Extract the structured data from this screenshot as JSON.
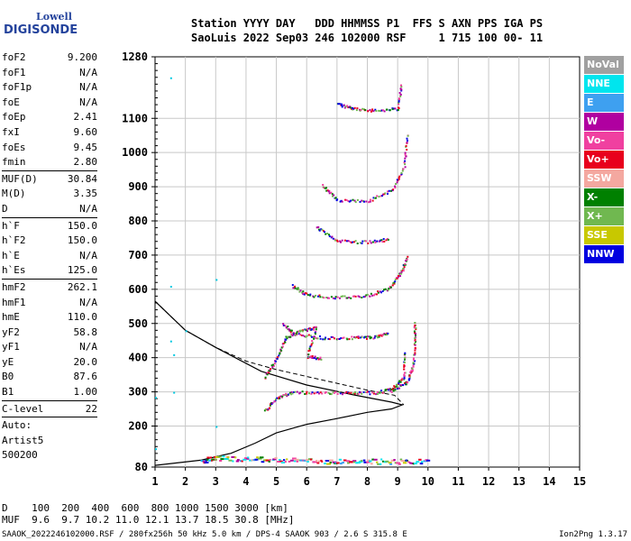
{
  "logo": {
    "line1": "Lowell",
    "line2": "DIGISONDE"
  },
  "header": {
    "line1": "Station YYYY DAY   DDD HHMMSS P1  FFS S AXN PPS IGA PS",
    "line2": "SaoLuis 2022 Sep03 246 102000 RSF     1 715 100 00- 11"
  },
  "params": {
    "group1": [
      {
        "k": "foF2",
        "v": "9.200"
      },
      {
        "k": "foF1",
        "v": "N/A"
      },
      {
        "k": "foF1p",
        "v": "N/A"
      },
      {
        "k": "foE",
        "v": "N/A"
      },
      {
        "k": "foEp",
        "v": "2.41"
      },
      {
        "k": "fxI",
        "v": "9.60"
      },
      {
        "k": "foEs",
        "v": "9.45"
      },
      {
        "k": "fmin",
        "v": "2.80"
      }
    ],
    "group2": [
      {
        "k": "MUF(D)",
        "v": "30.84"
      },
      {
        "k": "M(D)",
        "v": "3.35"
      },
      {
        "k": "D",
        "v": "N/A"
      }
    ],
    "group3": [
      {
        "k": "h`F",
        "v": "150.0"
      },
      {
        "k": "h`F2",
        "v": "150.0"
      },
      {
        "k": "h`E",
        "v": "N/A"
      },
      {
        "k": "h`Es",
        "v": "125.0"
      }
    ],
    "group4": [
      {
        "k": "hmF2",
        "v": "262.1"
      },
      {
        "k": "hmF1",
        "v": "N/A"
      },
      {
        "k": "hmE",
        "v": "110.0"
      },
      {
        "k": "yF2",
        "v": "58.8"
      },
      {
        "k": "yF1",
        "v": "N/A"
      },
      {
        "k": "yE",
        "v": "20.0"
      },
      {
        "k": "B0",
        "v": "87.6"
      },
      {
        "k": "B1",
        "v": "1.00"
      }
    ],
    "group5": [
      {
        "k": "C-level",
        "v": "22"
      }
    ],
    "auto": [
      "Auto:",
      "Artist5",
      "500200"
    ]
  },
  "legend": [
    {
      "label": "NoVal",
      "color": "#a0a0a0"
    },
    {
      "label": "NNE",
      "color": "#00e5ee"
    },
    {
      "label": "E",
      "color": "#3ea0f0"
    },
    {
      "label": "W",
      "color": "#b000a0"
    },
    {
      "label": "Vo-",
      "color": "#f040a0"
    },
    {
      "label": "Vo+",
      "color": "#e8001c"
    },
    {
      "label": "SSW",
      "color": "#f4a8a0"
    },
    {
      "label": "X-",
      "color": "#008000"
    },
    {
      "label": "X+",
      "color": "#70b850"
    },
    {
      "label": "SSE",
      "color": "#c8c800"
    },
    {
      "label": "NNW",
      "color": "#0000e0"
    }
  ],
  "footer": {
    "line1": "D    100  200  400  600  800 1000 1500 3000 [km]",
    "line2": "MUF  9.6  9.7 10.2 11.0 12.1 13.7 18.5 30.8 [MHz]",
    "bottom": "SAAOK_2022246102000.RSF / 280fx256h 50 kHz 5.0 km / DPS-4 SAAOK 903 / 2.6 S 315.8 E",
    "version": "Ion2Png 1.3.17"
  },
  "chart_data": {
    "type": "scatter",
    "title": "",
    "xlabel": "",
    "ylabel": "",
    "xlim": [
      1,
      15
    ],
    "ylim": [
      80,
      1280
    ],
    "x_ticks": [
      1,
      2,
      3,
      4,
      5,
      6,
      7,
      8,
      9,
      10,
      11,
      12,
      13,
      14,
      15
    ],
    "y_ticks": [
      80,
      200,
      300,
      400,
      500,
      600,
      700,
      800,
      900,
      1000,
      1100,
      1280
    ],
    "grid": true,
    "profile_solid": [
      [
        1.0,
        85
      ],
      [
        2.5,
        100
      ],
      [
        3.5,
        120
      ],
      [
        4.3,
        150
      ],
      [
        5.0,
        180
      ],
      [
        6.0,
        205
      ],
      [
        7.0,
        222
      ],
      [
        8.0,
        240
      ],
      [
        8.8,
        250
      ],
      [
        9.15,
        262
      ],
      [
        8.8,
        270
      ],
      [
        7.5,
        292
      ],
      [
        6.0,
        320
      ],
      [
        4.5,
        360
      ],
      [
        3.0,
        430
      ],
      [
        2.0,
        480
      ],
      [
        1.0,
        565
      ]
    ],
    "trace_series": [
      {
        "name": "Es",
        "points": [
          [
            2.5,
            100
          ],
          [
            3.0,
            108
          ],
          [
            4.0,
            105
          ],
          [
            5.0,
            103
          ],
          [
            6.0,
            100
          ],
          [
            7.0,
            98
          ],
          [
            8.0,
            98
          ],
          [
            9.0,
            98
          ],
          [
            10.0,
            98
          ]
        ]
      },
      {
        "name": "F2-1",
        "points": [
          [
            4.6,
            245
          ],
          [
            5.0,
            285
          ],
          [
            5.5,
            300
          ],
          [
            6.5,
            300
          ],
          [
            7.5,
            298
          ],
          [
            8.3,
            300
          ],
          [
            8.8,
            310
          ],
          [
            9.2,
            345
          ],
          [
            9.2,
            420
          ]
        ]
      },
      {
        "name": "F2-1x",
        "points": [
          [
            8.8,
            305
          ],
          [
            9.3,
            330
          ],
          [
            9.5,
            380
          ],
          [
            9.55,
            450
          ],
          [
            9.55,
            510
          ]
        ]
      },
      {
        "name": "F2-2",
        "points": [
          [
            5.2,
            500
          ],
          [
            5.6,
            470
          ],
          [
            6.5,
            460
          ],
          [
            7.5,
            460
          ],
          [
            8.2,
            462
          ],
          [
            8.7,
            475
          ]
        ]
      },
      {
        "name": "F2-2b",
        "points": [
          [
            5.5,
            612
          ],
          [
            6.0,
            585
          ],
          [
            7.0,
            578
          ],
          [
            8.0,
            583
          ],
          [
            8.7,
            605
          ],
          [
            9.1,
            650
          ],
          [
            9.3,
            700
          ]
        ]
      },
      {
        "name": "F2-3",
        "points": [
          [
            6.3,
            785
          ],
          [
            7.0,
            742
          ],
          [
            8.0,
            740
          ],
          [
            8.7,
            748
          ]
        ]
      },
      {
        "name": "F2-4",
        "points": [
          [
            6.5,
            905
          ],
          [
            7.0,
            862
          ],
          [
            8.0,
            860
          ],
          [
            8.8,
            890
          ],
          [
            9.2,
            960
          ],
          [
            9.3,
            1060
          ]
        ]
      },
      {
        "name": "F2-5",
        "points": [
          [
            7.0,
            1145
          ],
          [
            7.5,
            1130
          ],
          [
            8.2,
            1125
          ],
          [
            9.0,
            1130
          ],
          [
            9.1,
            1200
          ]
        ]
      },
      {
        "name": "oblique",
        "points": [
          [
            4.6,
            345
          ],
          [
            5.0,
            400
          ],
          [
            5.3,
            460
          ],
          [
            5.8,
            480
          ],
          [
            6.3,
            490
          ],
          [
            6.0,
            405
          ],
          [
            6.5,
            400
          ]
        ]
      }
    ],
    "dashed_profile": [
      [
        1.0,
        565
      ],
      [
        2.0,
        480
      ],
      [
        3.0,
        430
      ],
      [
        4.0,
        390
      ],
      [
        5.0,
        365
      ],
      [
        6.0,
        345
      ],
      [
        7.0,
        325
      ],
      [
        8.0,
        305
      ],
      [
        8.9,
        290
      ],
      [
        9.2,
        262
      ]
    ],
    "scattered_points": [
      [
        1.5,
        1220
      ],
      [
        1.5,
        610
      ],
      [
        1.5,
        450
      ],
      [
        1.6,
        410
      ],
      [
        1.6,
        300
      ],
      [
        2.0,
        480
      ],
      [
        3.0,
        630
      ],
      [
        1.0,
        285
      ],
      [
        1.0,
        135
      ],
      [
        3.0,
        200
      ]
    ]
  }
}
